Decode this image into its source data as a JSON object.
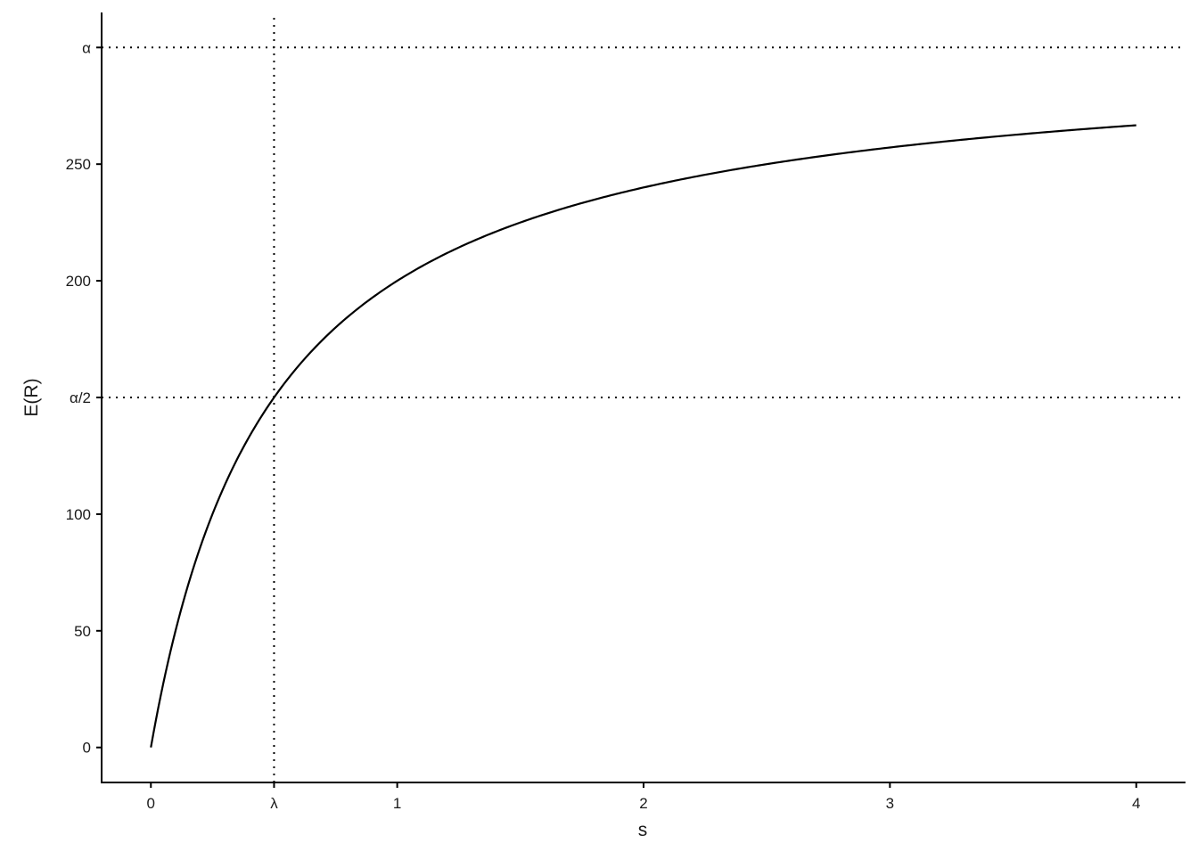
{
  "chart_data": {
    "type": "line",
    "title": "",
    "xlabel": "s",
    "ylabel": "E(R)",
    "xlim": [
      -0.2,
      4.2
    ],
    "ylim": [
      -15,
      315
    ],
    "grid": false,
    "curve": {
      "alpha": 300,
      "lambda": 0.5,
      "x_range": [
        0,
        4
      ]
    },
    "x": [
      0,
      0.25,
      0.5,
      0.75,
      1,
      1.5,
      2,
      2.5,
      3,
      3.5,
      4
    ],
    "y": [
      0,
      100,
      150,
      180,
      200,
      225,
      240,
      250,
      257.1,
      262.5,
      266.7
    ],
    "x_ticks": [
      {
        "value": 0,
        "label": "0"
      },
      {
        "value": 0.5,
        "label": "λ"
      },
      {
        "value": 1,
        "label": "1"
      },
      {
        "value": 2,
        "label": "2"
      },
      {
        "value": 3,
        "label": "3"
      },
      {
        "value": 4,
        "label": "4"
      }
    ],
    "y_ticks": [
      {
        "value": 0,
        "label": "0"
      },
      {
        "value": 50,
        "label": "50"
      },
      {
        "value": 100,
        "label": "100"
      },
      {
        "value": 150,
        "label": "α/2"
      },
      {
        "value": 200,
        "label": "200"
      },
      {
        "value": 250,
        "label": "250"
      },
      {
        "value": 300,
        "label": "α"
      }
    ],
    "reference_lines": [
      {
        "orientation": "horizontal",
        "value": 300,
        "style": "dotted"
      },
      {
        "orientation": "horizontal",
        "value": 150,
        "style": "dotted"
      },
      {
        "orientation": "vertical",
        "value": 0.5,
        "style": "dotted"
      }
    ],
    "line_color": "#000000"
  }
}
